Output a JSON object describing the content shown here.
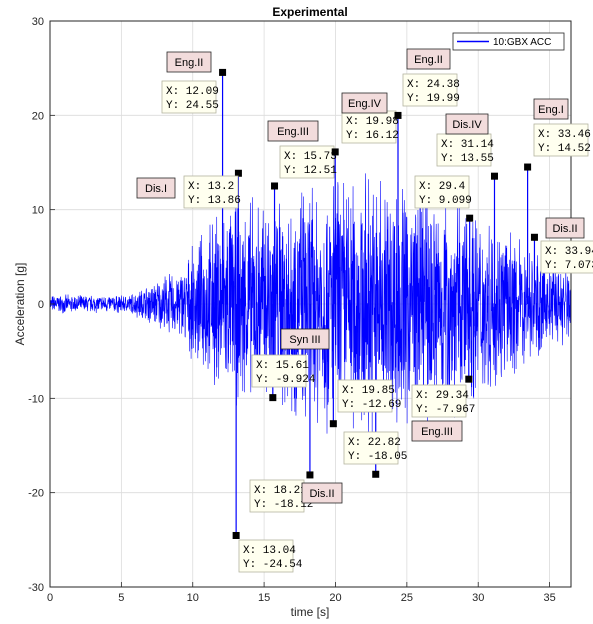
{
  "chart_data": {
    "type": "line",
    "title": "Experimental",
    "xlabel": "time [s]",
    "ylabel": "Acceleration [g]",
    "xlim": [
      0,
      36.5
    ],
    "ylim": [
      -30,
      30
    ],
    "xticks": [
      "0",
      "5",
      "10",
      "15",
      "20",
      "25",
      "30",
      "35"
    ],
    "yticks": [
      "-30",
      "-20",
      "-10",
      "0",
      "10",
      "20",
      "30"
    ],
    "grid": true,
    "legend": {
      "placement": "top-right",
      "entries": [
        "10:GBX ACC"
      ]
    },
    "series_color": "#0000ff",
    "series": [
      {
        "name": "10:GBX ACC"
      }
    ],
    "datatips": [
      {
        "x": 12.09,
        "y": 24.55,
        "x_text": "X: 12.09",
        "y_text": "Y: 24.55"
      },
      {
        "x": 13.2,
        "y": 13.86,
        "x_text": "X: 13.2",
        "y_text": "Y: 13.86"
      },
      {
        "x": 15.73,
        "y": 12.51,
        "x_text": "X: 15.73",
        "y_text": "Y: 12.51"
      },
      {
        "x": 19.98,
        "y": 16.12,
        "x_text": "X: 19.98",
        "y_text": "Y: 16.12"
      },
      {
        "x": 24.38,
        "y": 19.99,
        "x_text": "X: 24.38",
        "y_text": "Y: 19.99"
      },
      {
        "x": 31.14,
        "y": 13.55,
        "x_text": "X: 31.14",
        "y_text": "Y: 13.55"
      },
      {
        "x": 33.46,
        "y": 14.52,
        "x_text": "X: 33.46",
        "y_text": "Y: 14.52"
      },
      {
        "x": 29.4,
        "y": 9.099,
        "x_text": "X: 29.4",
        "y_text": "Y: 9.099"
      },
      {
        "x": 33.94,
        "y": 7.073,
        "x_text": "X: 33.94",
        "y_text": "Y: 7.073"
      },
      {
        "x": 15.61,
        "y": -9.924,
        "x_text": "X: 15.61",
        "y_text": "Y: -9.924"
      },
      {
        "x": 19.85,
        "y": -12.69,
        "x_text": "X: 19.85",
        "y_text": "Y: -12.69"
      },
      {
        "x": 22.82,
        "y": -18.05,
        "x_text": "X: 22.82",
        "y_text": "Y: -18.05"
      },
      {
        "x": 29.34,
        "y": -7.967,
        "x_text": "X: 29.34",
        "y_text": "Y: -7.967"
      },
      {
        "x": 18.21,
        "y": -18.12,
        "x_text": "X: 18.21",
        "y_text": "Y: -18.12"
      },
      {
        "x": 13.04,
        "y": -24.54,
        "x_text": "X: 13.04",
        "y_text": "Y: -24.54"
      }
    ],
    "annotations": [
      "Eng.II",
      "Dis.I",
      "Eng.III",
      "Eng.IV",
      "Eng.II",
      "Dis.IV",
      "Eng.I",
      "Dis.II",
      "Syn III",
      "Eng.III",
      "Dis.II"
    ]
  }
}
